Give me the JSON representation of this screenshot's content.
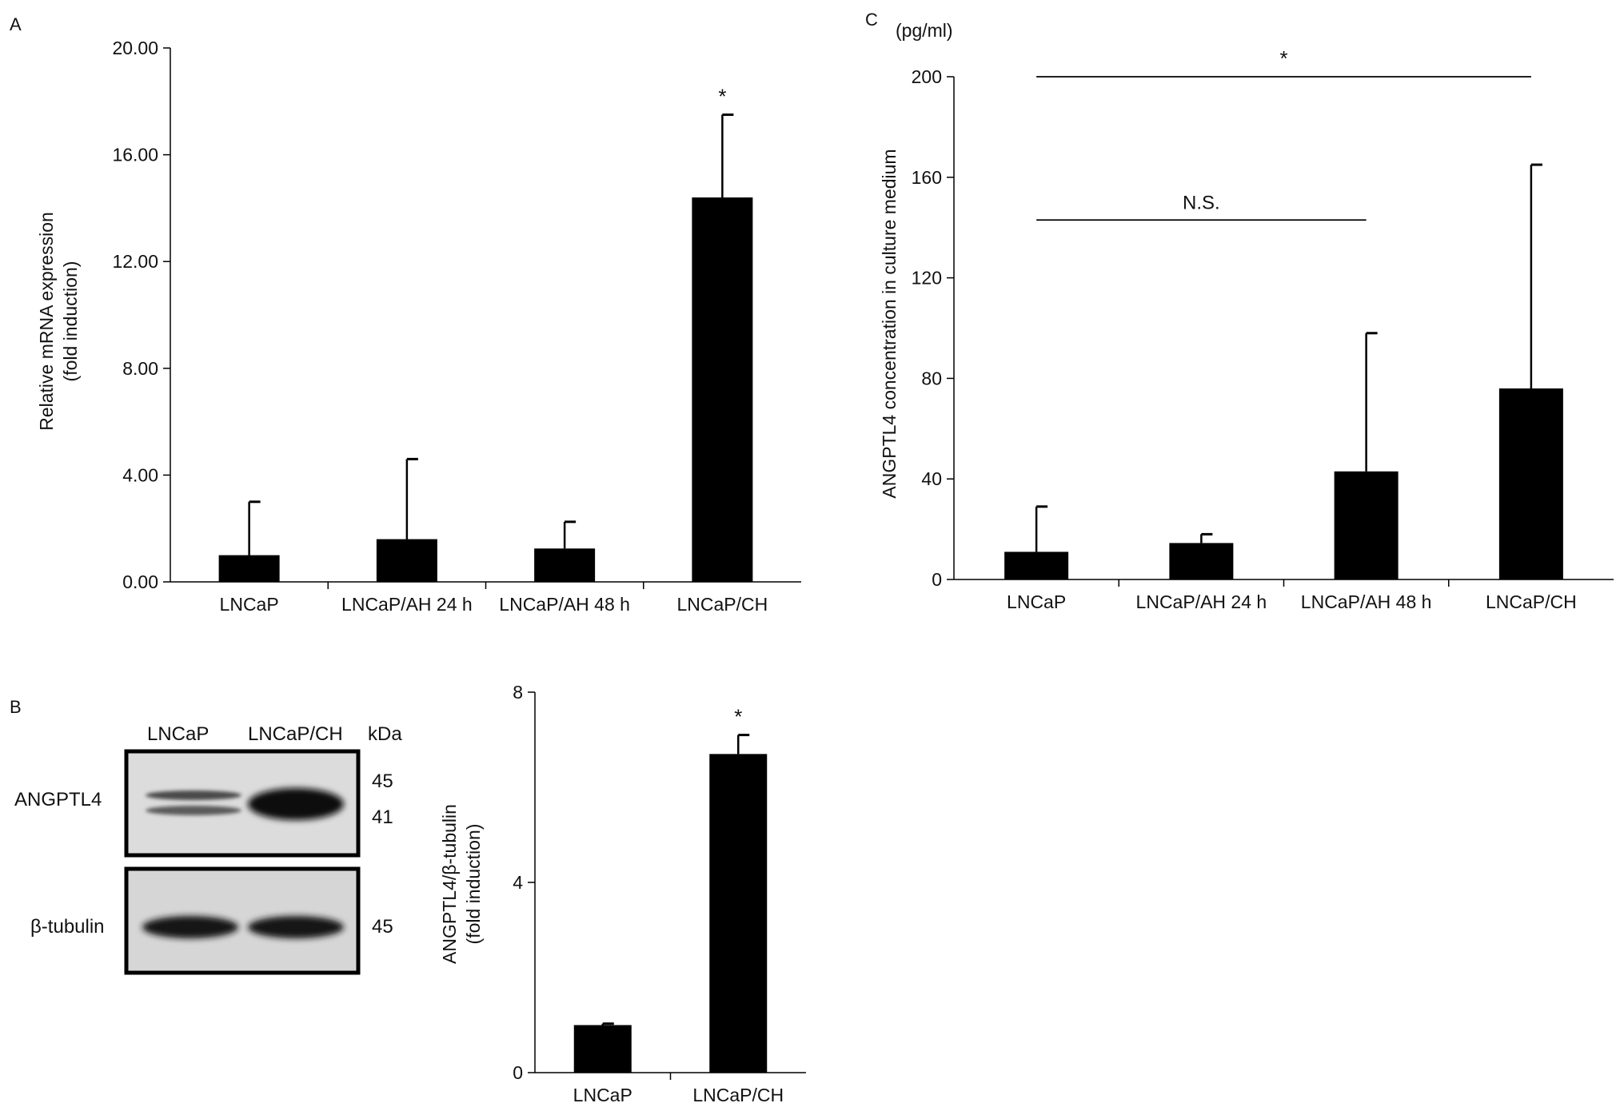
{
  "chart_data": [
    {
      "panel": "A",
      "type": "bar",
      "categories": [
        "LNCaP",
        "LNCaP/AH 24 h",
        "LNCaP/AH 48 h",
        "LNCaP/CH"
      ],
      "values": [
        1.0,
        1.6,
        1.25,
        14.4
      ],
      "errors": [
        2.0,
        3.0,
        1.0,
        3.1
      ],
      "ylabel": [
        "Relative mRNA expression",
        "(fold induction)"
      ],
      "ylim": [
        0,
        20
      ],
      "yticks": [
        "0.00",
        "4.00",
        "8.00",
        "12.00",
        "16.00",
        "20.00"
      ],
      "annotations": [
        {
          "category": "LNCaP/CH",
          "text": "*"
        }
      ]
    },
    {
      "panel": "C",
      "type": "bar",
      "categories": [
        "LNCaP",
        "LNCaP/AH 24 h",
        "LNCaP/AH 48 h",
        "LNCaP/CH"
      ],
      "values": [
        11,
        14.5,
        43,
        76
      ],
      "errors": [
        18,
        3.5,
        55,
        89
      ],
      "ylabel": [
        "ANGPTL4 concentration in culture medium"
      ],
      "unit": "(pg/ml)",
      "ylim": [
        0,
        200
      ],
      "yticks": [
        "0",
        "40",
        "80",
        "120",
        "160",
        "200"
      ],
      "brackets": [
        {
          "from": "LNCaP",
          "to": "LNCaP/CH",
          "level": 200,
          "text": "*"
        },
        {
          "from": "LNCaP",
          "to": "LNCaP/AH 48 h",
          "level": 143,
          "text": "N.S."
        }
      ]
    },
    {
      "panel": "B",
      "type": "bar",
      "categories": [
        "LNCaP",
        "LNCaP/CH"
      ],
      "values": [
        1.0,
        6.7
      ],
      "errors": [
        0.03,
        0.4
      ],
      "ylabel": [
        "ANGPTL4/β-tubulin",
        "(fold induction)"
      ],
      "ylim": [
        0,
        8
      ],
      "yticks": [
        "0",
        "4",
        "8"
      ],
      "annotations": [
        {
          "category": "LNCaP/CH",
          "text": "*"
        }
      ]
    }
  ],
  "panel_labels": {
    "a": "A",
    "b": "B",
    "c": "C"
  },
  "blot": {
    "lane_labels": [
      "LNCaP",
      "LNCaP/CH"
    ],
    "kda_label": "kDa",
    "rows": [
      {
        "name": "ANGPTL4",
        "markers": [
          "45",
          "41"
        ]
      },
      {
        "name": "β-tubulin",
        "markers": [
          "45"
        ]
      }
    ]
  }
}
